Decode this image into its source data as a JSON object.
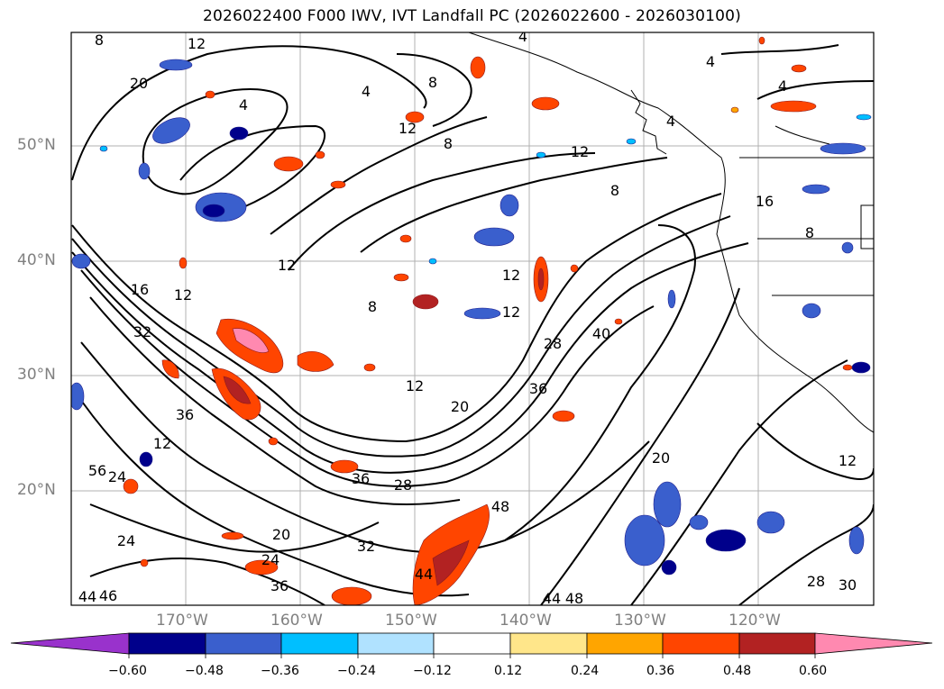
{
  "title": "2026022400 F000 IWV, IVT Landfall PC (2026022600 - 2026030100)",
  "lat_labels": [
    "50°N",
    "40°N",
    "30°N",
    "20°N"
  ],
  "lon_labels": [
    "170°W",
    "160°W",
    "150°W",
    "140°W",
    "130°W",
    "120°W"
  ],
  "contour_labels": [
    "8",
    "12",
    "20",
    "4",
    "4",
    "8",
    "4",
    "4",
    "12",
    "8",
    "12",
    "8",
    "12",
    "16",
    "16",
    "8",
    "12",
    "12",
    "8",
    "12",
    "12",
    "4",
    "4",
    "32",
    "36",
    "28",
    "40",
    "36",
    "12",
    "36",
    "28",
    "20",
    "24",
    "20",
    "24",
    "36",
    "32",
    "44",
    "48",
    "20",
    "12",
    "28",
    "30",
    "44",
    "48",
    "44",
    "46",
    "24",
    "56"
  ],
  "colorbar": {
    "ticks": [
      "−0.60",
      "−0.48",
      "−0.36",
      "−0.24",
      "−0.12",
      "0.12",
      "0.24",
      "0.36",
      "0.48",
      "0.60"
    ],
    "colors": [
      "#9932cc",
      "#00008b",
      "#3a5fcd",
      "#00bfff",
      "#b0e2ff",
      "#ffffff",
      "#ffe68a",
      "#ffa500",
      "#ff4500",
      "#b22222",
      "#ff89b0"
    ]
  },
  "grid_color": "#b0b0b0"
}
